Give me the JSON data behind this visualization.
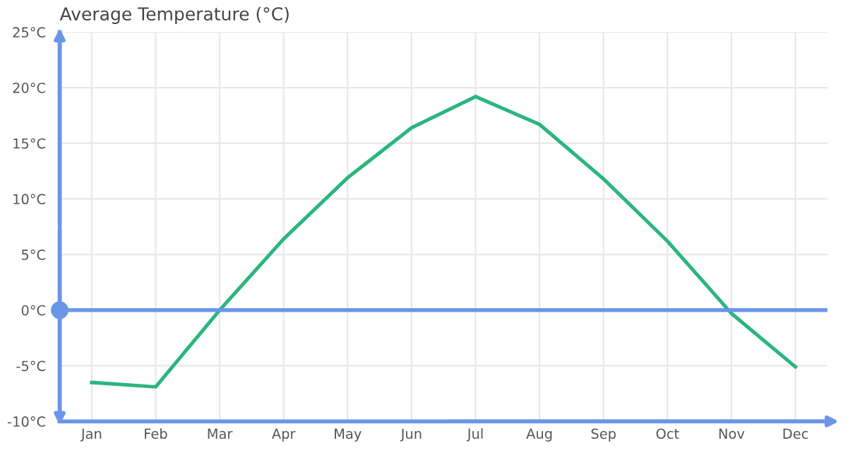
{
  "chart_data": {
    "type": "line",
    "title": "Average Temperature (°C)",
    "categories": [
      "Jan",
      "Feb",
      "Mar",
      "Apr",
      "May",
      "Jun",
      "Jul",
      "Aug",
      "Sep",
      "Oct",
      "Nov",
      "Dec"
    ],
    "series": [
      {
        "color": "#2bb57f",
        "values": [
          -6.5,
          -6.9,
          0,
          6.4,
          11.9,
          16.4,
          19.2,
          16.7,
          11.8,
          6.2,
          -0.3,
          -5.1
        ]
      }
    ],
    "ylim": [
      -10,
      25
    ],
    "yticks": [
      {
        "value": -10,
        "label": "-10°C"
      },
      {
        "value": -5,
        "label": "-5°C"
      },
      {
        "value": 0,
        "label": "0°C"
      },
      {
        "value": 5,
        "label": "5°C"
      },
      {
        "value": 10,
        "label": "10°C"
      },
      {
        "value": 15,
        "label": "15°C"
      },
      {
        "value": 20,
        "label": "20°C"
      },
      {
        "value": 25,
        "label": "25°C"
      }
    ],
    "ref_lines": [
      {
        "axis": "y",
        "value": 0,
        "label": null,
        "color": "#6b96e8"
      }
    ],
    "grid": true,
    "legend": false,
    "marker": "none",
    "line_style": "solid"
  }
}
